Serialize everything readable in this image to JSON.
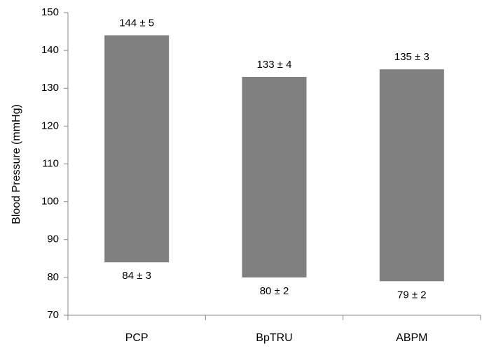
{
  "chart_data": {
    "type": "floating_bar",
    "y_label": "Blood Pressure (mmHg)",
    "categories": [
      "PCP",
      "BpTRU",
      "ABPM"
    ],
    "series": [
      {
        "values": [
          144,
          133,
          135
        ],
        "value_labels": [
          "144 ± 5",
          "133 ± 4",
          "135 ± 3"
        ]
      },
      {
        "values": [
          84,
          80,
          79
        ],
        "value_labels": [
          "84 ± 3",
          "80 ± 2",
          "79 ± 2"
        ]
      }
    ],
    "color": "#808080",
    "ylim": [
      70,
      150
    ],
    "yticks": [
      70,
      80,
      90,
      100,
      110,
      120,
      130,
      140,
      150
    ],
    "grid": false
  }
}
